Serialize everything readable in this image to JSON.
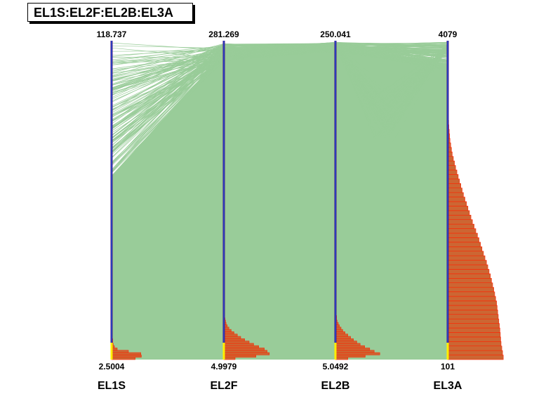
{
  "title": "EL1S:EL2F:EL2B:EL3A",
  "colors": {
    "band": "#99cc99",
    "line": "#99cc99",
    "hist_fill": "#cc6633",
    "hist_edge": "#ff2200",
    "axis": "#551177",
    "axis_stripe": "#0066ff",
    "axis_low": "#ffee00"
  },
  "chart_data": {
    "type": "parallel-coordinates",
    "title": "EL1S:EL2F:EL2B:EL3A",
    "axes": [
      {
        "name": "EL1S",
        "max": "118.737",
        "min": "2.5004",
        "hist": [
          0.42,
          0.53,
          0.52,
          0.3,
          0.1,
          0.05,
          0.03,
          0.02,
          0.02,
          0.01,
          0.01,
          0.01,
          0.01,
          0.01
        ]
      },
      {
        "name": "EL2F",
        "max": "281.269",
        "min": "4.9979",
        "hist": [
          0.2,
          0.57,
          0.81,
          0.77,
          0.72,
          0.62,
          0.53,
          0.45,
          0.37,
          0.3,
          0.24,
          0.18,
          0.13,
          0.09,
          0.06,
          0.04,
          0.03,
          0.02,
          0.01
        ]
      },
      {
        "name": "EL2B",
        "max": "250.041",
        "min": "5.0492",
        "hist": [
          0.22,
          0.53,
          0.79,
          0.69,
          0.61,
          0.52,
          0.44,
          0.38,
          0.32,
          0.27,
          0.22,
          0.17,
          0.13,
          0.1,
          0.07,
          0.05,
          0.03,
          0.02,
          0.02,
          0.01,
          0.01
        ]
      },
      {
        "name": "EL3A",
        "max": "4079",
        "min": "101",
        "hist": [
          0.99,
          0.95,
          0.93,
          0.9,
          0.87,
          0.82,
          0.76,
          0.69,
          0.61,
          0.53,
          0.44,
          0.36,
          0.28,
          0.21,
          0.14,
          0.08,
          0.04,
          0.02,
          0.01
        ]
      }
    ]
  }
}
